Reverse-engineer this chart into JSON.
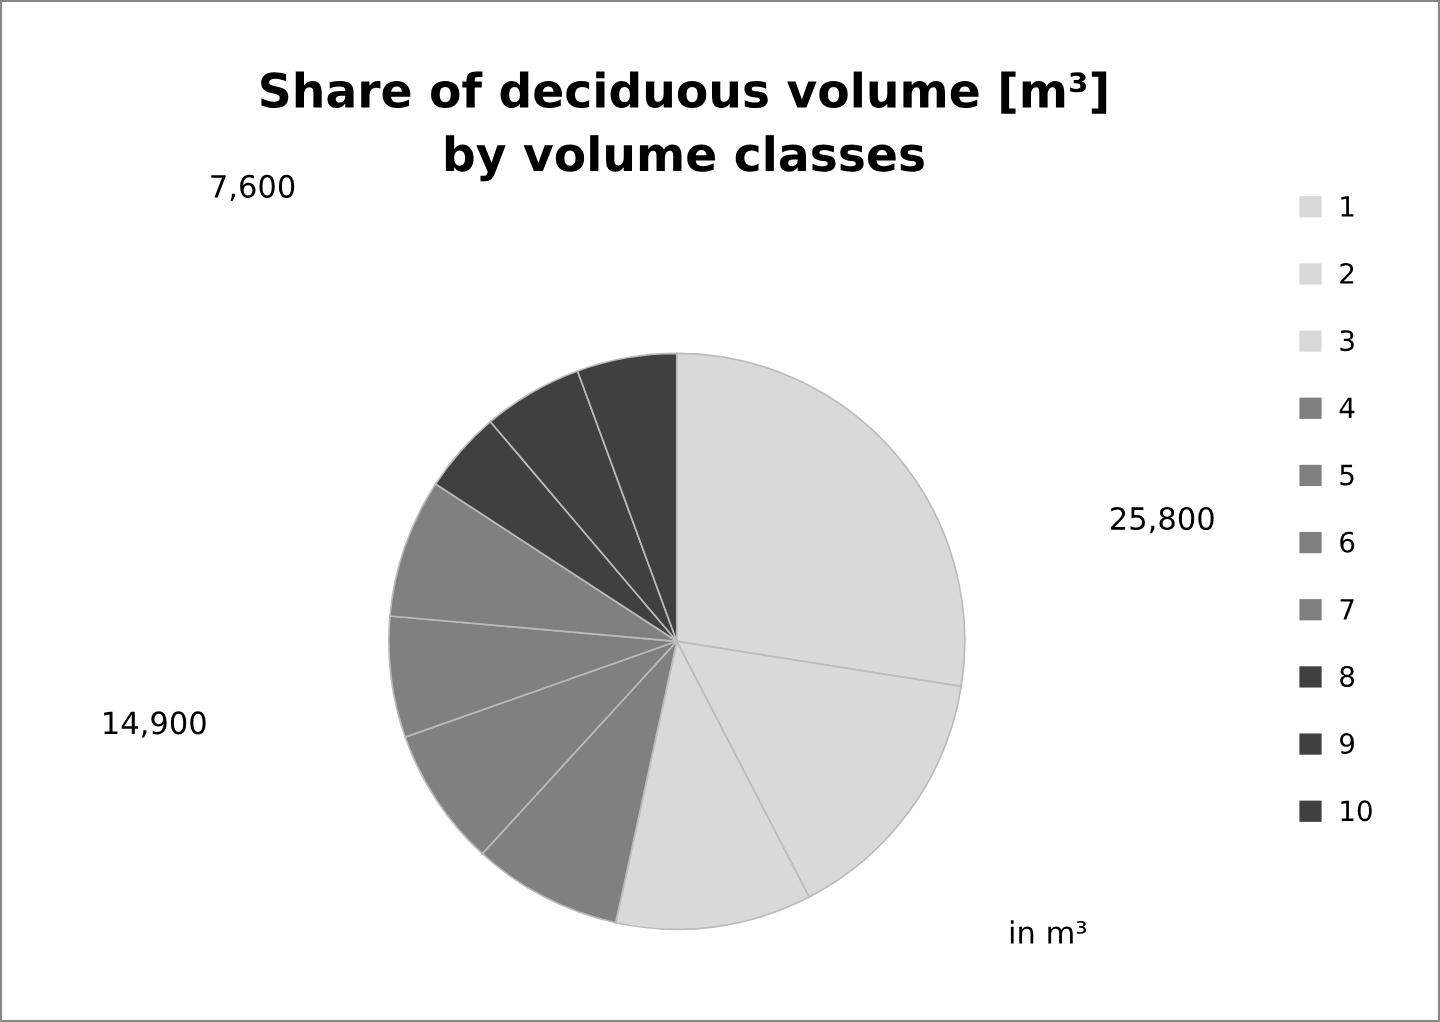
{
  "chart_data": {
    "type": "pie",
    "title": "Share of deciduous volume [m³]\nby volume classes",
    "categories": [
      "1",
      "2",
      "3",
      "4",
      "5",
      "6",
      "7",
      "8",
      "9",
      "10"
    ],
    "values": [
      27.5,
      14.9,
      11.0,
      8.4,
      7.8,
      6.8,
      7.8,
      4.6,
      5.6,
      5.6
    ],
    "colors": [
      "#d9d9d9",
      "#d9d9d9",
      "#d9d9d9",
      "#808080",
      "#808080",
      "#808080",
      "#808080",
      "#404040",
      "#404040",
      "#404040"
    ],
    "annotations": [
      "25,800",
      "14,900",
      "7,600",
      "in m³"
    ],
    "legend": "right"
  }
}
